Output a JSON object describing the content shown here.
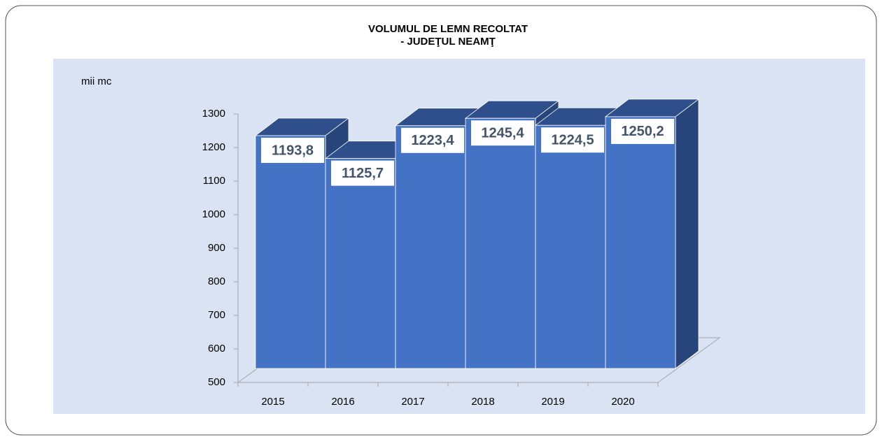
{
  "chart_data": {
    "type": "bar3d",
    "title": [
      "VOLUMUL DE LEMN RECOLTAT",
      "- JUDEŢUL NEAMŢ"
    ],
    "y_axis_label": "mii mc",
    "categories": [
      "2015",
      "2016",
      "2017",
      "2018",
      "2019",
      "2020"
    ],
    "values": [
      1193.8,
      1125.7,
      1223.4,
      1245.4,
      1224.5,
      1250.2
    ],
    "value_labels": [
      "1193,8",
      "1125,7",
      "1223,4",
      "1245,4",
      "1224,5",
      "1250,2"
    ],
    "color": "#4472c4",
    "ylim": [
      500,
      1300
    ],
    "yticks": [
      500,
      600,
      700,
      800,
      900,
      1000,
      1100,
      1200,
      1300
    ]
  }
}
